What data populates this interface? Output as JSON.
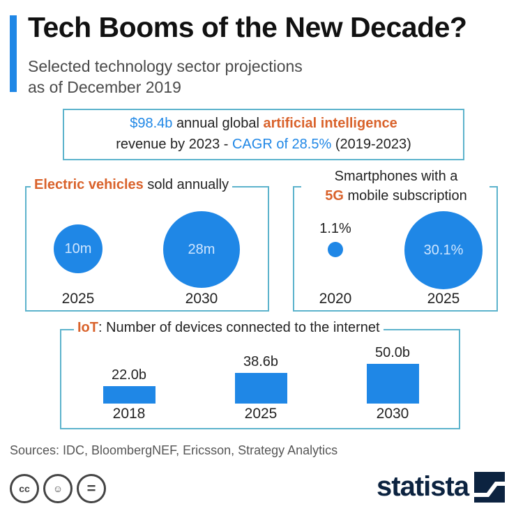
{
  "header": {
    "title": "Tech Booms of the New Decade?",
    "subtitle_line1": "Selected technology sector projections",
    "subtitle_line2": "as of December 2019"
  },
  "ai": {
    "value": "$98.4b",
    "text1": "annual global",
    "highlight": "artificial intelligence",
    "text2": "revenue by 2023 -",
    "cagr": "CAGR of 28.5%",
    "period": "(2019-2023)"
  },
  "ev": {
    "label_highlight": "Electric vehicles",
    "label_rest": "sold annually"
  },
  "fiveg": {
    "label_line1": "Smartphones with a",
    "label_highlight": "5G",
    "label_rest": "mobile subscription"
  },
  "iot": {
    "label_highlight": "IoT",
    "label_rest": ": Number of devices connected to the internet"
  },
  "chart_data": [
    {
      "type": "bubble",
      "title": "Electric vehicles sold annually",
      "categories": [
        "2025",
        "2030"
      ],
      "values": [
        10,
        28
      ],
      "labels": [
        "10m",
        "28m"
      ],
      "unit": "million"
    },
    {
      "type": "bubble",
      "title": "Smartphones with a 5G mobile subscription",
      "categories": [
        "2020",
        "2025"
      ],
      "values": [
        1.1,
        30.1
      ],
      "labels": [
        "1.1%",
        "30.1%"
      ],
      "unit": "percent"
    },
    {
      "type": "bar",
      "title": "IoT: Number of devices connected to the internet",
      "categories": [
        "2018",
        "2025",
        "2030"
      ],
      "values": [
        22.0,
        38.6,
        50.0
      ],
      "labels": [
        "22.0b",
        "38.6b",
        "50.0b"
      ],
      "unit": "billion"
    }
  ],
  "footer": {
    "sources": "Sources: IDC, BloombergNEF, Ericsson, Strategy Analytics",
    "cc_icons": [
      "cc-icon",
      "by-person-icon",
      "nd-equals-icon"
    ],
    "cc_glyphs": [
      "cc",
      "☺",
      "="
    ],
    "brand": "statista"
  },
  "colors": {
    "accent": "#1f87e6",
    "highlight": "#d9622b",
    "frame": "#5cb3cc",
    "brand": "#0c2340"
  }
}
